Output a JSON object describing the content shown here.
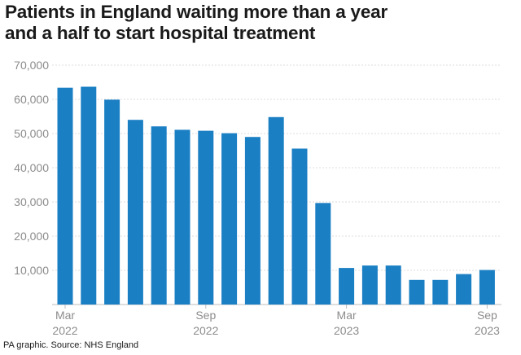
{
  "title_lines": [
    "Patients in England waiting more than a year",
    "and a half to start hospital treatment"
  ],
  "source": "PA graphic. Source: NHS England",
  "colors": {
    "bar": "#1b7fc4",
    "grid": "#dcdcdc",
    "tick": "#8c8c8c"
  },
  "chart_data": {
    "type": "bar",
    "title": "Patients in England waiting more than a year and a half to start hospital treatment",
    "xlabel": "",
    "ylabel": "",
    "ylim": [
      0,
      70000
    ],
    "yticks": [
      10000,
      20000,
      30000,
      40000,
      50000,
      60000,
      70000
    ],
    "ytick_labels": [
      "10,000",
      "20,000",
      "30,000",
      "40,000",
      "50,000",
      "60,000",
      "70,000"
    ],
    "xtick_labels": [
      {
        "index": 0,
        "line1": "Mar",
        "line2": "2022"
      },
      {
        "index": 6,
        "line1": "Sep",
        "line2": "2022"
      },
      {
        "index": 12,
        "line1": "Mar",
        "line2": "2023"
      },
      {
        "index": 18,
        "line1": "Sep",
        "line2": "2023"
      }
    ],
    "grid": true,
    "categories": [
      "Mar 2022",
      "Apr 2022",
      "May 2022",
      "Jun 2022",
      "Jul 2022",
      "Aug 2022",
      "Sep 2022",
      "Oct 2022",
      "Nov 2022",
      "Dec 2022",
      "Jan 2023",
      "Feb 2023",
      "Mar 2023",
      "Apr 2023",
      "May 2023",
      "Jun 2023",
      "Jul 2023",
      "Aug 2023",
      "Sep 2023"
    ],
    "values": [
      63400,
      63700,
      59900,
      54000,
      52100,
      51100,
      50800,
      50100,
      49000,
      54800,
      45600,
      29700,
      10700,
      11400,
      11400,
      7200,
      7200,
      8900,
      10100
    ]
  }
}
